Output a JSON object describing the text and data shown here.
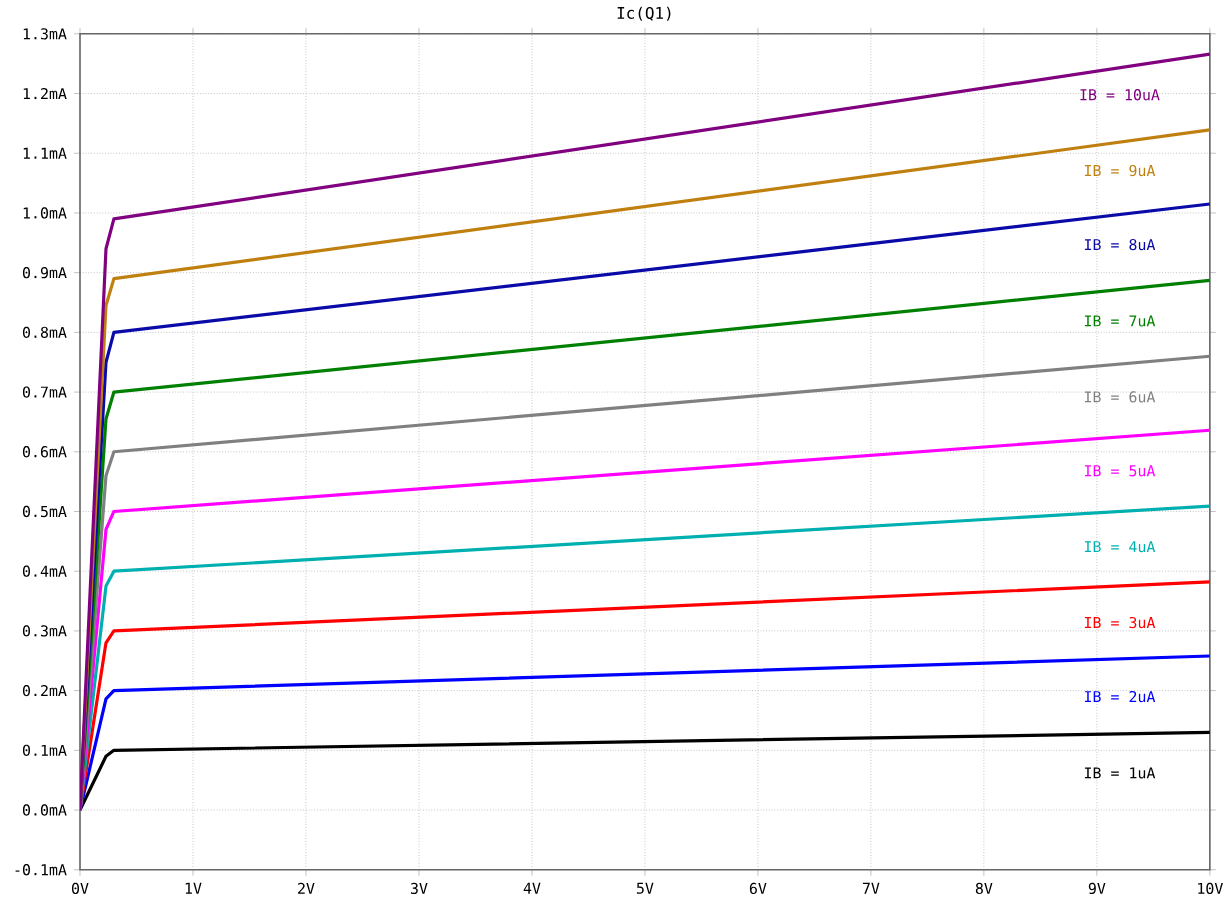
{
  "chart_data": {
    "type": "line",
    "title": "Ic(Q1)",
    "x": [
      0,
      0.23,
      0.3,
      10
    ],
    "series": [
      {
        "name": "IB = 1uA",
        "color": "#000000",
        "values": [
          0,
          0.09,
          0.1,
          0.13
        ]
      },
      {
        "name": "IB = 2uA",
        "color": "#0000ff",
        "values": [
          0,
          0.186,
          0.2,
          0.258
        ]
      },
      {
        "name": "IB = 3uA",
        "color": "#ff0000",
        "values": [
          0,
          0.28,
          0.3,
          0.382
        ]
      },
      {
        "name": "IB = 4uA",
        "color": "#00b0b0",
        "values": [
          0,
          0.375,
          0.4,
          0.509
        ]
      },
      {
        "name": "IB = 5uA",
        "color": "#ff00ff",
        "values": [
          0,
          0.47,
          0.5,
          0.636
        ]
      },
      {
        "name": "IB = 6uA",
        "color": "#808080",
        "values": [
          0,
          0.56,
          0.6,
          0.76
        ]
      },
      {
        "name": "IB = 7uA",
        "color": "#008000",
        "values": [
          0,
          0.655,
          0.7,
          0.887
        ]
      },
      {
        "name": "IB = 8uA",
        "color": "#0a0aa8",
        "values": [
          0,
          0.75,
          0.8,
          1.015
        ]
      },
      {
        "name": "IB = 9uA",
        "color": "#c08010",
        "values": [
          0,
          0.845,
          0.89,
          1.139
        ]
      },
      {
        "name": "IB = 10uA",
        "color": "#800080",
        "values": [
          0,
          0.94,
          0.99,
          1.266
        ]
      }
    ],
    "xlim": [
      0,
      10
    ],
    "ylim": [
      -0.1,
      1.3
    ],
    "xticks": [
      {
        "value": 0,
        "label": "0V"
      },
      {
        "value": 1,
        "label": "1V"
      },
      {
        "value": 2,
        "label": "2V"
      },
      {
        "value": 3,
        "label": "3V"
      },
      {
        "value": 4,
        "label": "4V"
      },
      {
        "value": 5,
        "label": "5V"
      },
      {
        "value": 6,
        "label": "6V"
      },
      {
        "value": 7,
        "label": "7V"
      },
      {
        "value": 8,
        "label": "8V"
      },
      {
        "value": 9,
        "label": "9V"
      },
      {
        "value": 10,
        "label": "10V"
      }
    ],
    "yticks": [
      {
        "value": -0.1,
        "label": "-0.1mA"
      },
      {
        "value": 0,
        "label": "0.0mA"
      },
      {
        "value": 0.1,
        "label": "0.1mA"
      },
      {
        "value": 0.2,
        "label": "0.2mA"
      },
      {
        "value": 0.3,
        "label": "0.3mA"
      },
      {
        "value": 0.4,
        "label": "0.4mA"
      },
      {
        "value": 0.5,
        "label": "0.5mA"
      },
      {
        "value": 0.6,
        "label": "0.6mA"
      },
      {
        "value": 0.7,
        "label": "0.7mA"
      },
      {
        "value": 0.8,
        "label": "0.8mA"
      },
      {
        "value": 0.9,
        "label": "0.9mA"
      },
      {
        "value": 1.0,
        "label": "1.0mA"
      },
      {
        "value": 1.1,
        "label": "1.1mA"
      },
      {
        "value": 1.2,
        "label": "1.2mA"
      },
      {
        "value": 1.3,
        "label": "1.3mA"
      }
    ],
    "grid": true,
    "legend": false,
    "marker": "none",
    "line_style": "solid"
  }
}
